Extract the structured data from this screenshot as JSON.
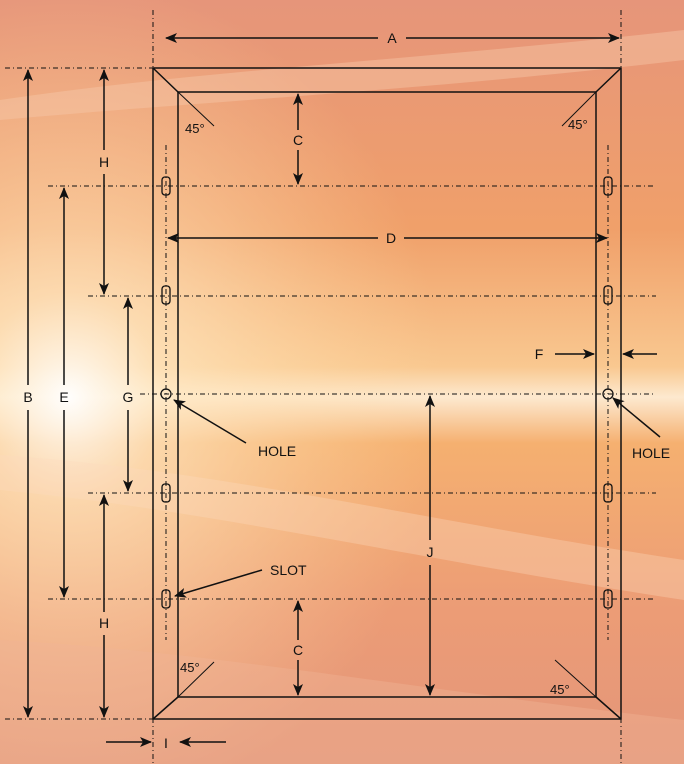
{
  "colors": {
    "bg_top": "#e9a07a",
    "bg_mid": "#f4a060",
    "bg_glow": "#fff6e8",
    "bg_bottom": "#e59a77",
    "ink": "#111111"
  },
  "labels": {
    "A": "A",
    "B": "B",
    "C": "C",
    "D": "D",
    "E": "E",
    "F": "F",
    "G": "G",
    "H": "H",
    "I": "I",
    "J": "J"
  },
  "callouts": {
    "hole": "HOLE",
    "slot": "SLOT"
  },
  "angle": "45°"
}
